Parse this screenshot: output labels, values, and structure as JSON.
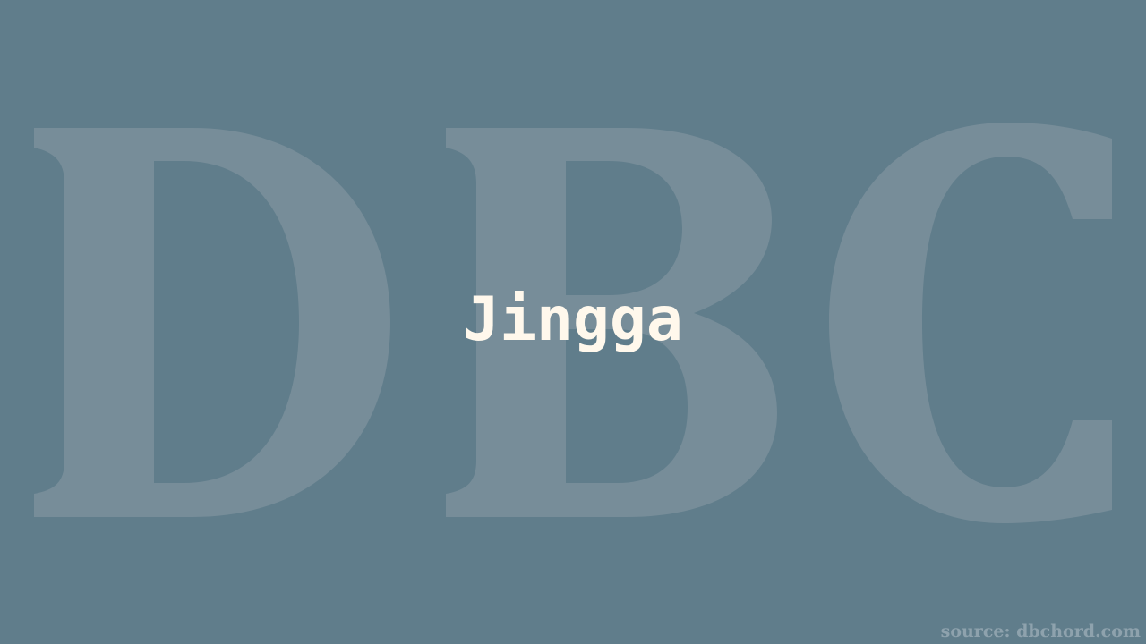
{
  "watermark": {
    "text": "DBC",
    "letters": [
      "D",
      "B",
      "C"
    ]
  },
  "title": "Jingga",
  "source": "source: dbchord.com",
  "colors": {
    "background": "#607d8b",
    "watermark": "#778d99",
    "title": "#fff8ec",
    "source": "#8ea2ad"
  }
}
